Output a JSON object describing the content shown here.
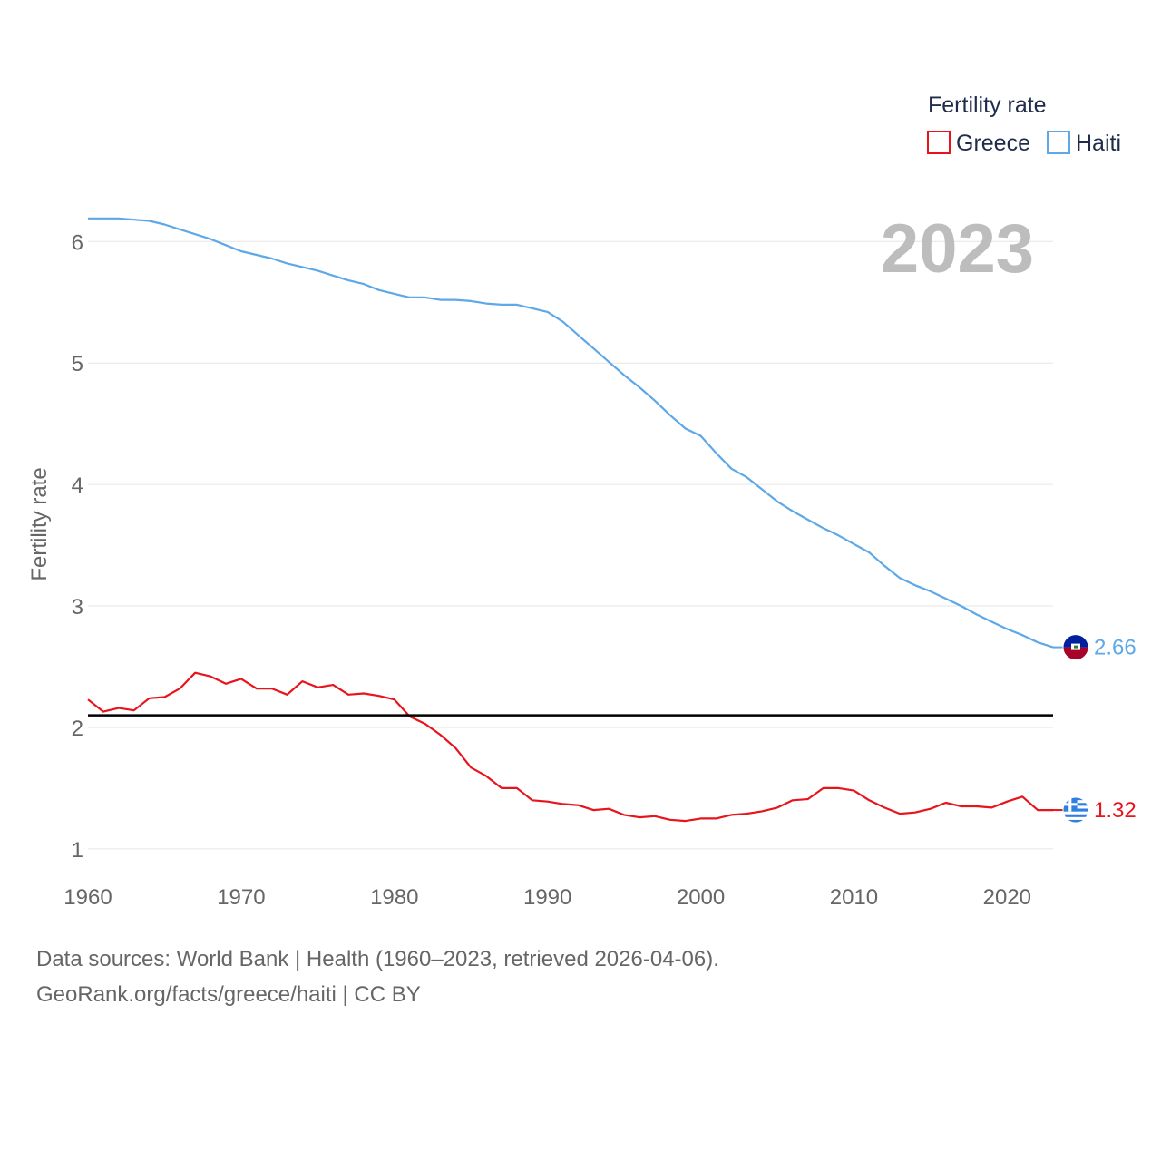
{
  "chart_data": {
    "type": "line",
    "title": "",
    "year_label": "2023",
    "ylabel": "Fertility rate",
    "xlabel": "",
    "xlim": [
      1960,
      2023
    ],
    "ylim": [
      0.85,
      6.45
    ],
    "x_ticks": [
      1960,
      1970,
      1980,
      1990,
      2000,
      2010,
      2020
    ],
    "y_ticks": [
      1,
      2,
      3,
      4,
      5,
      6
    ],
    "legend": {
      "title": "Fertility rate",
      "position": "top-right"
    },
    "reference_line": {
      "y": 2.1,
      "color": "#000000"
    },
    "x": [
      1960,
      1961,
      1962,
      1963,
      1964,
      1965,
      1966,
      1967,
      1968,
      1969,
      1970,
      1971,
      1972,
      1973,
      1974,
      1975,
      1976,
      1977,
      1978,
      1979,
      1980,
      1981,
      1982,
      1983,
      1984,
      1985,
      1986,
      1987,
      1988,
      1989,
      1990,
      1991,
      1992,
      1993,
      1994,
      1995,
      1996,
      1997,
      1998,
      1999,
      2000,
      2001,
      2002,
      2003,
      2004,
      2005,
      2006,
      2007,
      2008,
      2009,
      2010,
      2011,
      2012,
      2013,
      2014,
      2015,
      2016,
      2017,
      2018,
      2019,
      2020,
      2021,
      2022,
      2023
    ],
    "series": [
      {
        "name": "Greece",
        "color": "#e8141c",
        "end_label": "1.32",
        "flag": "greece",
        "values": [
          2.23,
          2.13,
          2.16,
          2.14,
          2.24,
          2.25,
          2.32,
          2.45,
          2.42,
          2.36,
          2.4,
          2.32,
          2.32,
          2.27,
          2.38,
          2.33,
          2.35,
          2.27,
          2.28,
          2.26,
          2.23,
          2.09,
          2.03,
          1.94,
          1.83,
          1.67,
          1.6,
          1.5,
          1.5,
          1.4,
          1.39,
          1.37,
          1.36,
          1.32,
          1.33,
          1.28,
          1.26,
          1.27,
          1.24,
          1.23,
          1.25,
          1.25,
          1.28,
          1.29,
          1.31,
          1.34,
          1.4,
          1.41,
          1.5,
          1.5,
          1.48,
          1.4,
          1.34,
          1.29,
          1.3,
          1.33,
          1.38,
          1.35,
          1.35,
          1.34,
          1.39,
          1.43,
          1.32,
          1.32
        ]
      },
      {
        "name": "Haiti",
        "color": "#5ea8e8",
        "end_label": "2.66",
        "flag": "haiti",
        "values": [
          6.19,
          6.19,
          6.19,
          6.18,
          6.17,
          6.14,
          6.1,
          6.06,
          6.02,
          5.97,
          5.92,
          5.89,
          5.86,
          5.82,
          5.79,
          5.76,
          5.72,
          5.68,
          5.65,
          5.6,
          5.57,
          5.54,
          5.54,
          5.52,
          5.52,
          5.51,
          5.49,
          5.48,
          5.48,
          5.45,
          5.42,
          5.34,
          5.23,
          5.12,
          5.01,
          4.9,
          4.8,
          4.69,
          4.57,
          4.46,
          4.4,
          4.26,
          4.13,
          4.06,
          3.96,
          3.86,
          3.78,
          3.71,
          3.64,
          3.58,
          3.51,
          3.44,
          3.33,
          3.23,
          3.17,
          3.12,
          3.06,
          3.0,
          2.93,
          2.87,
          2.81,
          2.76,
          2.7,
          2.66
        ]
      }
    ]
  },
  "source": {
    "line1": "Data sources: World Bank | Health (1960–2023, retrieved 2026-04-06).",
    "line2": "GeoRank.org/facts/greece/haiti | CC BY"
  }
}
